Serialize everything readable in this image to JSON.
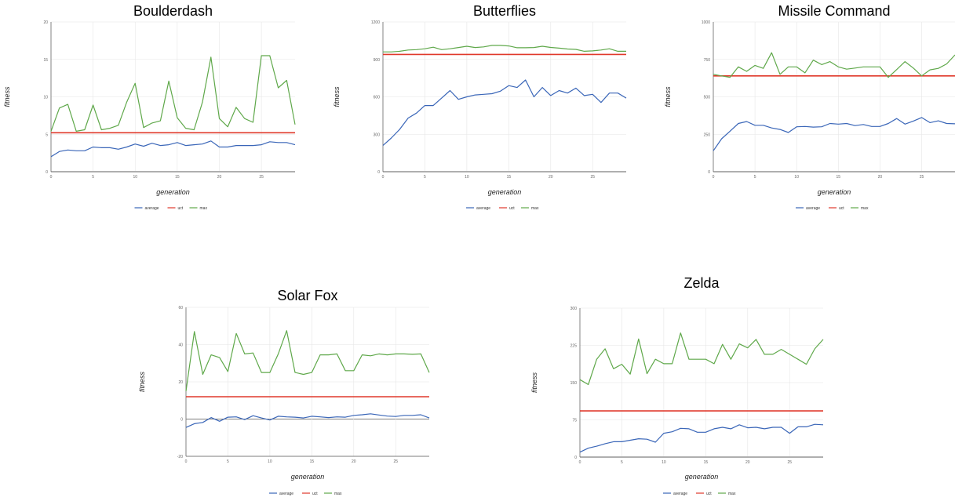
{
  "legend": [
    "average",
    "uct",
    "max"
  ],
  "colors": {
    "average": "#3a66b8",
    "uct": "#e0392b",
    "max": "#5fa84a"
  },
  "chart_data": [
    {
      "type": "line",
      "title": "Boulderdash",
      "xlabel": "generation",
      "ylabel": "fitness",
      "xlim": [
        0,
        29
      ],
      "ylim": [
        0,
        20
      ],
      "yticks": [
        "0",
        "5",
        "10",
        "15",
        "20"
      ],
      "xticks": [
        "0",
        "5",
        "10",
        "15",
        "20",
        "25"
      ],
      "x": [
        0,
        1,
        2,
        3,
        4,
        5,
        6,
        7,
        8,
        9,
        10,
        11,
        12,
        13,
        14,
        15,
        16,
        17,
        18,
        19,
        20,
        21,
        22,
        23,
        24,
        25,
        26,
        27,
        28,
        29
      ],
      "series": [
        {
          "name": "average",
          "values": [
            2.0,
            2.7,
            2.9,
            2.8,
            2.8,
            3.3,
            3.2,
            3.2,
            3.0,
            3.3,
            3.7,
            3.4,
            3.8,
            3.5,
            3.6,
            3.9,
            3.5,
            3.6,
            3.7,
            4.1,
            3.3,
            3.3,
            3.5,
            3.5,
            3.5,
            3.6,
            4.0,
            3.9,
            3.9,
            3.6
          ]
        },
        {
          "name": "uct",
          "values": [
            5.2,
            5.2,
            5.2,
            5.2,
            5.2,
            5.2,
            5.2,
            5.2,
            5.2,
            5.2,
            5.2,
            5.2,
            5.2,
            5.2,
            5.2,
            5.2,
            5.2,
            5.2,
            5.2,
            5.2,
            5.2,
            5.2,
            5.2,
            5.2,
            5.2,
            5.2,
            5.2,
            5.2,
            5.2,
            5.2
          ]
        },
        {
          "name": "max",
          "values": [
            5.4,
            8.5,
            9.0,
            5.4,
            5.6,
            8.9,
            5.6,
            5.8,
            6.2,
            9.3,
            11.8,
            5.9,
            6.5,
            6.8,
            12.1,
            7.2,
            5.8,
            5.6,
            9.3,
            15.3,
            7.1,
            6.0,
            8.6,
            7.1,
            6.6,
            15.5,
            15.5,
            11.2,
            12.2,
            6.3
          ]
        }
      ]
    },
    {
      "type": "line",
      "title": "Butterflies",
      "xlabel": "generation",
      "ylabel": "fitness",
      "xlim": [
        0,
        29
      ],
      "ylim": [
        0,
        1200
      ],
      "yticks": [
        "0",
        "300",
        "600",
        "900",
        "1200"
      ],
      "xticks": [
        "0",
        "5",
        "10",
        "15",
        "20",
        "25"
      ],
      "x": [
        0,
        1,
        2,
        3,
        4,
        5,
        6,
        7,
        8,
        9,
        10,
        11,
        12,
        13,
        14,
        15,
        16,
        17,
        18,
        19,
        20,
        21,
        22,
        23,
        24,
        25,
        26,
        27,
        28,
        29
      ],
      "series": [
        {
          "name": "average",
          "values": [
            210,
            270,
            340,
            430,
            470,
            530,
            530,
            590,
            650,
            580,
            600,
            615,
            620,
            625,
            645,
            690,
            675,
            735,
            600,
            675,
            610,
            650,
            630,
            670,
            610,
            620,
            555,
            630,
            630,
            590
          ]
        },
        {
          "name": "uct",
          "values": [
            940,
            940,
            940,
            940,
            940,
            940,
            940,
            940,
            940,
            940,
            940,
            940,
            940,
            940,
            940,
            940,
            940,
            940,
            940,
            940,
            940,
            940,
            940,
            940,
            940,
            940,
            940,
            940,
            940,
            940
          ]
        },
        {
          "name": "max",
          "values": [
            960,
            960,
            965,
            975,
            978,
            985,
            998,
            978,
            985,
            995,
            1005,
            995,
            1000,
            1012,
            1012,
            1008,
            993,
            993,
            995,
            1005,
            996,
            990,
            983,
            980,
            965,
            968,
            975,
            985,
            965,
            965
          ]
        }
      ]
    },
    {
      "type": "line",
      "title": "Missile Command",
      "xlabel": "generation",
      "ylabel": "fitness",
      "xlim": [
        0,
        29
      ],
      "ylim": [
        0,
        1000
      ],
      "yticks": [
        "0",
        "250",
        "500",
        "750",
        "1000"
      ],
      "xticks": [
        "0",
        "5",
        "10",
        "15",
        "20",
        "25"
      ],
      "x": [
        0,
        1,
        2,
        3,
        4,
        5,
        6,
        7,
        8,
        9,
        10,
        11,
        12,
        13,
        14,
        15,
        16,
        17,
        18,
        19,
        20,
        21,
        22,
        23,
        24,
        25,
        26,
        27,
        28,
        29
      ],
      "series": [
        {
          "name": "average",
          "values": [
            140,
            220,
            270,
            322,
            335,
            310,
            310,
            292,
            282,
            262,
            300,
            302,
            298,
            300,
            322,
            318,
            322,
            308,
            315,
            302,
            302,
            322,
            355,
            318,
            338,
            362,
            328,
            340,
            322,
            320
          ]
        },
        {
          "name": "uct",
          "values": [
            640,
            640,
            640,
            640,
            640,
            640,
            640,
            640,
            640,
            640,
            640,
            640,
            640,
            640,
            640,
            640,
            640,
            640,
            640,
            640,
            640,
            640,
            640,
            640,
            640,
            640,
            640,
            640,
            640,
            640
          ]
        },
        {
          "name": "max",
          "values": [
            650,
            640,
            630,
            700,
            670,
            710,
            690,
            795,
            650,
            700,
            700,
            660,
            745,
            715,
            735,
            700,
            685,
            692,
            700,
            700,
            700,
            630,
            682,
            735,
            692,
            640,
            680,
            690,
            720,
            780
          ]
        }
      ]
    },
    {
      "type": "line",
      "title": "Solar Fox",
      "xlabel": "generation",
      "ylabel": "fitness",
      "xlim": [
        0,
        29
      ],
      "ylim": [
        -20,
        60
      ],
      "yticks": [
        "-20",
        "0",
        "20",
        "40",
        "60"
      ],
      "xticks": [
        "0",
        "5",
        "10",
        "15",
        "20",
        "25"
      ],
      "x": [
        0,
        1,
        2,
        3,
        4,
        5,
        6,
        7,
        8,
        9,
        10,
        11,
        12,
        13,
        14,
        15,
        16,
        17,
        18,
        19,
        20,
        21,
        22,
        23,
        24,
        25,
        26,
        27,
        28,
        29
      ],
      "series": [
        {
          "name": "average",
          "values": [
            -4.5,
            -2.5,
            -1.8,
            0.8,
            -1.2,
            1.0,
            1.2,
            -0.3,
            1.8,
            0.6,
            -0.5,
            1.5,
            1.2,
            1.0,
            0.6,
            1.5,
            1.2,
            0.8,
            1.2,
            1.0,
            2.0,
            2.3,
            2.8,
            2.2,
            1.6,
            1.4,
            2.0,
            2.0,
            2.3,
            0.6
          ]
        },
        {
          "name": "uct",
          "values": [
            12,
            12,
            12,
            12,
            12,
            12,
            12,
            12,
            12,
            12,
            12,
            12,
            12,
            12,
            12,
            12,
            12,
            12,
            12,
            12,
            12,
            12,
            12,
            12,
            12,
            12,
            12,
            12,
            12,
            12
          ]
        },
        {
          "name": "max",
          "values": [
            15,
            47,
            24,
            34.5,
            33,
            25.5,
            46,
            35,
            35.5,
            25,
            25,
            35,
            47.5,
            25,
            24,
            25,
            34.5,
            34.5,
            35,
            26,
            26,
            34.5,
            34,
            35,
            34.5,
            35,
            35,
            34.8,
            35,
            25
          ]
        }
      ]
    },
    {
      "type": "line",
      "title": "Zelda",
      "xlabel": "generation",
      "ylabel": "fitness",
      "xlim": [
        0,
        29
      ],
      "ylim": [
        0,
        300
      ],
      "yticks": [
        "0",
        "75",
        "150",
        "225",
        "300"
      ],
      "xticks": [
        "0",
        "5",
        "10",
        "15",
        "20",
        "25"
      ],
      "x": [
        0,
        1,
        2,
        3,
        4,
        5,
        6,
        7,
        8,
        9,
        10,
        11,
        12,
        13,
        14,
        15,
        16,
        17,
        18,
        19,
        20,
        21,
        22,
        23,
        24,
        25,
        26,
        27,
        28,
        29
      ],
      "series": [
        {
          "name": "average",
          "values": [
            10,
            18,
            22,
            27,
            31,
            31,
            34,
            37,
            36,
            30,
            48,
            51,
            58,
            57,
            50,
            50,
            57,
            60,
            57,
            65,
            59,
            60,
            57,
            60,
            60,
            48,
            61,
            61,
            66,
            65
          ]
        },
        {
          "name": "uct",
          "values": [
            93,
            93,
            93,
            93,
            93,
            93,
            93,
            93,
            93,
            93,
            93,
            93,
            93,
            93,
            93,
            93,
            93,
            93,
            93,
            93,
            93,
            93,
            93,
            93,
            93,
            93,
            93,
            93,
            93,
            93
          ]
        },
        {
          "name": "max",
          "values": [
            156,
            146,
            197,
            218,
            178,
            187,
            167,
            238,
            168,
            197,
            188,
            188,
            250,
            197,
            197,
            197,
            188,
            227,
            197,
            228,
            220,
            237,
            207,
            207,
            217,
            207,
            197,
            187,
            218,
            237
          ]
        }
      ]
    }
  ]
}
